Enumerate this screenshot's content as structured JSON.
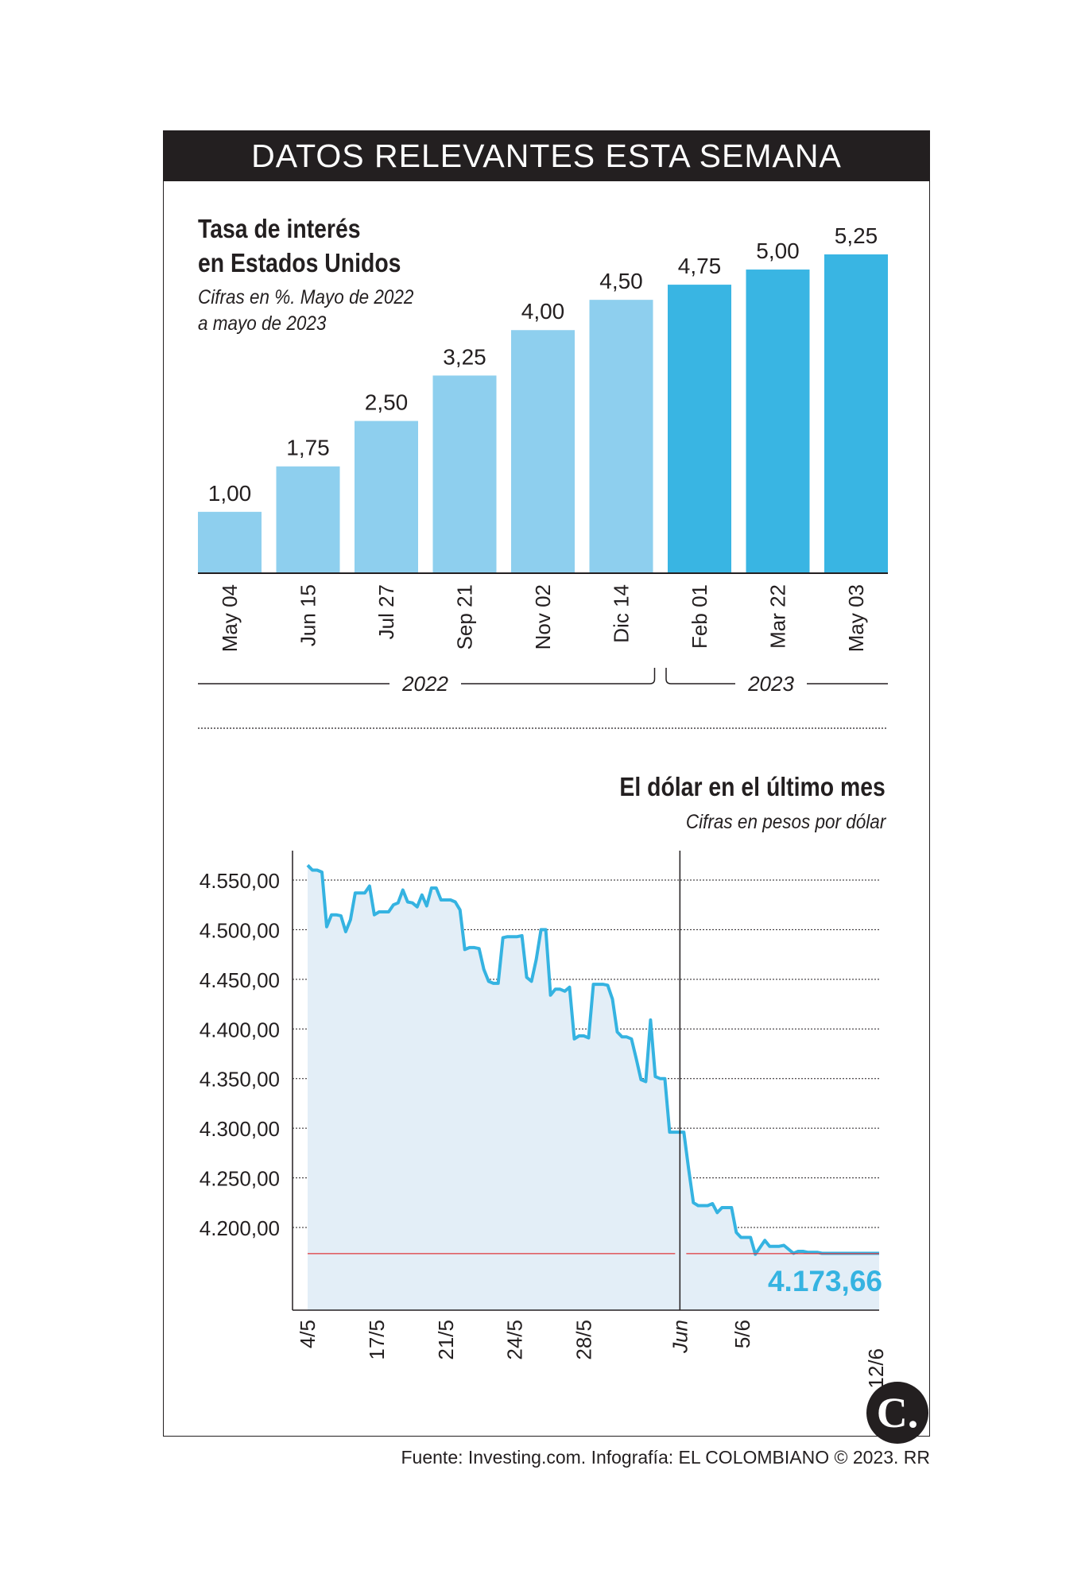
{
  "header": {
    "title": "DATOS RELEVANTES ESTA SEMANA"
  },
  "chart_data": [
    {
      "type": "bar",
      "title": "Tasa de interés en Estados Unidos",
      "title_lines": [
        "Tasa de interés",
        "en Estados Unidos"
      ],
      "subtitle_lines": [
        "Cifras en %. Mayo de 2022",
        "a mayo de 2023"
      ],
      "categories": [
        "May 04",
        "Jun 15",
        "Jul 27",
        "Sep 21",
        "Nov 02",
        "Dic 14",
        "Feb 01",
        "Mar 22",
        "May 03"
      ],
      "values": [
        1.0,
        1.75,
        2.5,
        3.25,
        4.0,
        4.5,
        4.75,
        5.0,
        5.25
      ],
      "value_labels": [
        "1,00",
        "1,75",
        "2,50",
        "3,25",
        "4,00",
        "4,50",
        "4,75",
        "5,00",
        "5,25"
      ],
      "years": [
        {
          "label": "2022",
          "count": 6
        },
        {
          "label": "2023",
          "count": 3
        }
      ],
      "colors": {
        "2022": "#8ecfee",
        "2023": "#39b5e3"
      },
      "ylim": [
        0,
        5.25
      ]
    },
    {
      "type": "area",
      "title": "El dólar en el último mes",
      "subtitle": "Cifras en pesos por dólar",
      "ylim": [
        4130,
        4570
      ],
      "y_ticks": [
        4200,
        4250,
        4300,
        4350,
        4400,
        4450,
        4500,
        4550
      ],
      "y_tick_labels": [
        "4.200,00",
        "4.250,00",
        "4.300,00",
        "4.350,00",
        "4.400,00",
        "4.450,00",
        "4.500,00",
        "4.550,00"
      ],
      "x_labels": [
        "4/5",
        "17/5",
        "21/5",
        "24/5",
        "28/5",
        "Jun",
        "5/6",
        "12/6"
      ],
      "x_label_positions": [
        0,
        8.7,
        17.4,
        26.1,
        34.8,
        46.9,
        54.8,
        71.6
      ],
      "divider_at": 46.9,
      "last_value": 4173.66,
      "last_value_label": "4.173,66",
      "x": [
        0,
        0.6,
        1.2,
        1.8,
        2.4,
        3.0,
        3.6,
        4.2,
        4.8,
        5.4,
        6.0,
        6.6,
        7.2,
        7.8,
        8.4,
        9.0,
        9.6,
        10.2,
        10.8,
        11.4,
        12.0,
        12.6,
        13.2,
        13.8,
        14.4,
        15.0,
        15.6,
        16.2,
        16.8,
        17.4,
        18.0,
        18.6,
        19.2,
        19.8,
        20.4,
        21.0,
        21.6,
        22.2,
        22.8,
        23.4,
        24.0,
        24.6,
        25.2,
        25.8,
        26.4,
        27.0,
        27.6,
        28.2,
        28.8,
        29.4,
        30.0,
        30.6,
        31.2,
        31.8,
        32.4,
        33.0,
        33.6,
        34.2,
        34.8,
        35.4,
        36.0,
        36.6,
        37.2,
        37.8,
        38.4,
        39.0,
        39.6,
        40.2,
        40.8,
        41.4,
        42.0,
        42.6,
        43.2,
        43.8,
        44.4,
        45.0,
        45.6,
        46.2,
        46.8,
        47.4,
        48.0,
        48.6,
        49.2,
        49.8,
        50.4,
        51.0,
        51.6,
        52.2,
        52.8,
        53.4,
        54.0,
        54.6,
        55.2,
        55.8,
        56.4,
        57.0,
        57.6,
        58.2,
        58.8,
        59.4,
        60.0,
        60.6,
        61.2,
        61.8,
        62.4,
        63.0,
        63.6,
        64.2,
        64.8,
        65.4,
        66.0,
        66.6,
        67.2,
        67.8,
        68.4,
        69.0,
        69.6,
        70.2,
        70.8,
        71.4,
        72.0
      ],
      "y": [
        4565,
        4560,
        4560,
        4558,
        4503,
        4515,
        4515,
        4514,
        4498,
        4510,
        4537,
        4537,
        4537,
        4544,
        4515,
        4518,
        4518,
        4518,
        4525,
        4527,
        4540,
        4528,
        4527,
        4523,
        4535,
        4524,
        4542,
        4542,
        4530,
        4530,
        4530,
        4528,
        4520,
        4480,
        4482,
        4482,
        4481,
        4460,
        4448,
        4446,
        4446,
        4492,
        4493,
        4493,
        4493,
        4494,
        4452,
        4448,
        4470,
        4500,
        4500,
        4434,
        4440,
        4440,
        4438,
        4442,
        4390,
        4393,
        4393,
        4391,
        4445,
        4445,
        4445,
        4444,
        4430,
        4397,
        4392,
        4392,
        4390,
        4370,
        4349,
        4347,
        4409,
        4352,
        4350,
        4350,
        4296,
        4296,
        4296,
        4296,
        4259,
        4225,
        4222,
        4222,
        4222,
        4224,
        4215,
        4220,
        4220,
        4220,
        4195,
        4190,
        4190,
        4190,
        4173,
        4180,
        4187,
        4181,
        4181,
        4181,
        4182,
        4178,
        4174,
        4176,
        4176,
        4175,
        4175,
        4175,
        4174,
        4174,
        4174,
        4174,
        4174,
        4174,
        4174,
        4174,
        4174,
        4174,
        4174,
        4174,
        4174
      ]
    }
  ],
  "footer": {
    "text": "Fuente: Investing.com. Infografía: EL COLOMBIANO © 2023. RR"
  },
  "logo": {
    "letter": "C."
  }
}
